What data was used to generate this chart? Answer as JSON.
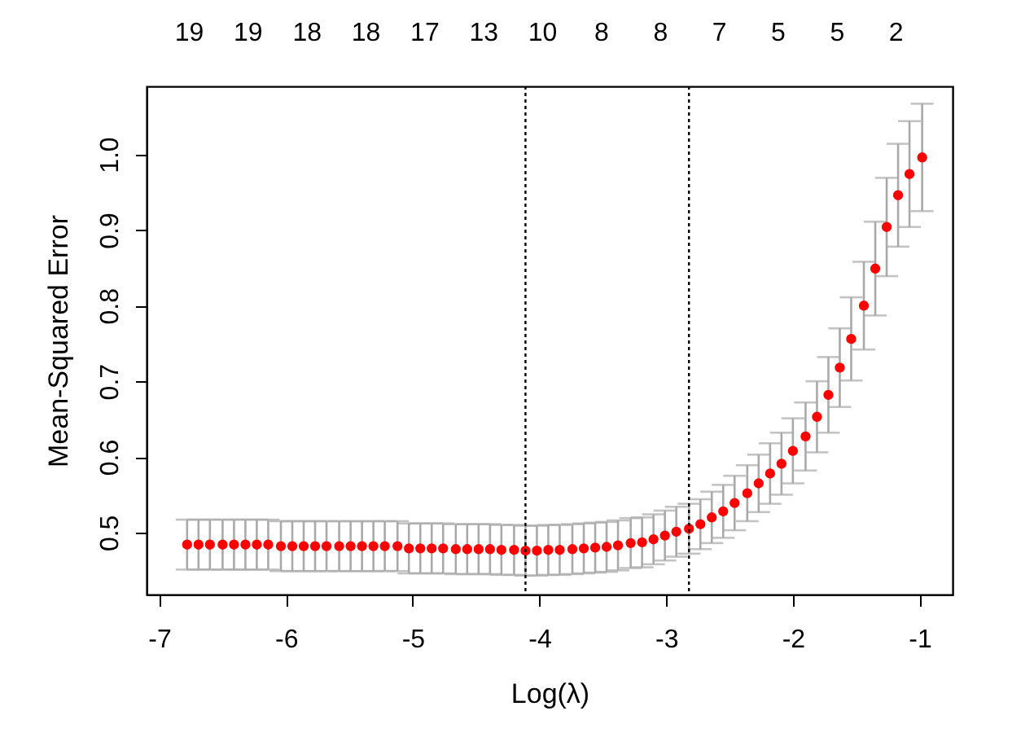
{
  "chart_data": {
    "type": "scatter",
    "xlabel": "Log(λ)",
    "ylabel": "Mean-Squared Error",
    "x": [
      -6.78,
      -6.69,
      -6.6,
      -6.5,
      -6.41,
      -6.32,
      -6.23,
      -6.14,
      -6.04,
      -5.95,
      -5.86,
      -5.77,
      -5.68,
      -5.58,
      -5.49,
      -5.4,
      -5.31,
      -5.22,
      -5.12,
      -5.03,
      -4.94,
      -4.85,
      -4.76,
      -4.66,
      -4.57,
      -4.48,
      -4.39,
      -4.3,
      -4.2,
      -4.11,
      -4.02,
      -3.93,
      -3.84,
      -3.74,
      -3.65,
      -3.56,
      -3.47,
      -3.38,
      -3.28,
      -3.19,
      -3.1,
      -3.01,
      -2.92,
      -2.82,
      -2.73,
      -2.64,
      -2.55,
      -2.46,
      -2.36,
      -2.27,
      -2.18,
      -2.09,
      -2.0,
      -1.9,
      -1.81,
      -1.72,
      -1.63,
      -1.54,
      -1.44,
      -1.35,
      -1.26,
      -1.17,
      -1.08,
      -0.98
    ],
    "series": [
      {
        "color": "#ff0000",
        "values": [
          0.484,
          0.484,
          0.484,
          0.484,
          0.484,
          0.484,
          0.484,
          0.484,
          0.482,
          0.482,
          0.482,
          0.482,
          0.482,
          0.482,
          0.482,
          0.482,
          0.482,
          0.482,
          0.482,
          0.479,
          0.479,
          0.479,
          0.479,
          0.478,
          0.478,
          0.478,
          0.478,
          0.477,
          0.477,
          0.476,
          0.476,
          0.477,
          0.477,
          0.478,
          0.479,
          0.48,
          0.481,
          0.483,
          0.486,
          0.487,
          0.491,
          0.496,
          0.501,
          0.505,
          0.511,
          0.52,
          0.528,
          0.539,
          0.552,
          0.565,
          0.578,
          0.591,
          0.608,
          0.627,
          0.653,
          0.682,
          0.718,
          0.756,
          0.8,
          0.849,
          0.904,
          0.946,
          0.974,
          0.996
        ],
        "errors": [
          0.033,
          0.033,
          0.033,
          0.033,
          0.033,
          0.033,
          0.033,
          0.033,
          0.033,
          0.033,
          0.033,
          0.033,
          0.033,
          0.033,
          0.033,
          0.033,
          0.033,
          0.033,
          0.033,
          0.033,
          0.033,
          0.033,
          0.033,
          0.033,
          0.033,
          0.033,
          0.033,
          0.033,
          0.033,
          0.033,
          0.033,
          0.033,
          0.033,
          0.033,
          0.033,
          0.033,
          0.033,
          0.033,
          0.033,
          0.033,
          0.033,
          0.033,
          0.033,
          0.033,
          0.033,
          0.034,
          0.035,
          0.036,
          0.037,
          0.038,
          0.04,
          0.041,
          0.043,
          0.045,
          0.047,
          0.05,
          0.052,
          0.055,
          0.058,
          0.062,
          0.065,
          0.068,
          0.07,
          0.071
        ]
      }
    ],
    "xlim": [
      -7.1,
      -0.74
    ],
    "xticks": [
      -7,
      -6,
      -5,
      -4,
      -3,
      -2,
      -1
    ],
    "ylim": [
      0.418,
      1.09
    ],
    "yticks": [
      0.5,
      0.6,
      0.7,
      0.8,
      0.9,
      {
        "value": 1,
        "label": "1.0"
      }
    ],
    "annotations": [
      "19",
      "19",
      "18",
      "18",
      "17",
      "13",
      "10",
      "8",
      "8",
      "7",
      "5",
      "5",
      "2"
    ],
    "ref_lines": [
      {
        "axis": "x",
        "value": -4.11,
        "color": "#000000",
        "line_style": "dotted"
      },
      {
        "axis": "x",
        "value": -2.82,
        "color": "#000000",
        "line_style": "dotted"
      }
    ],
    "marker": "circle",
    "grid": false
  }
}
